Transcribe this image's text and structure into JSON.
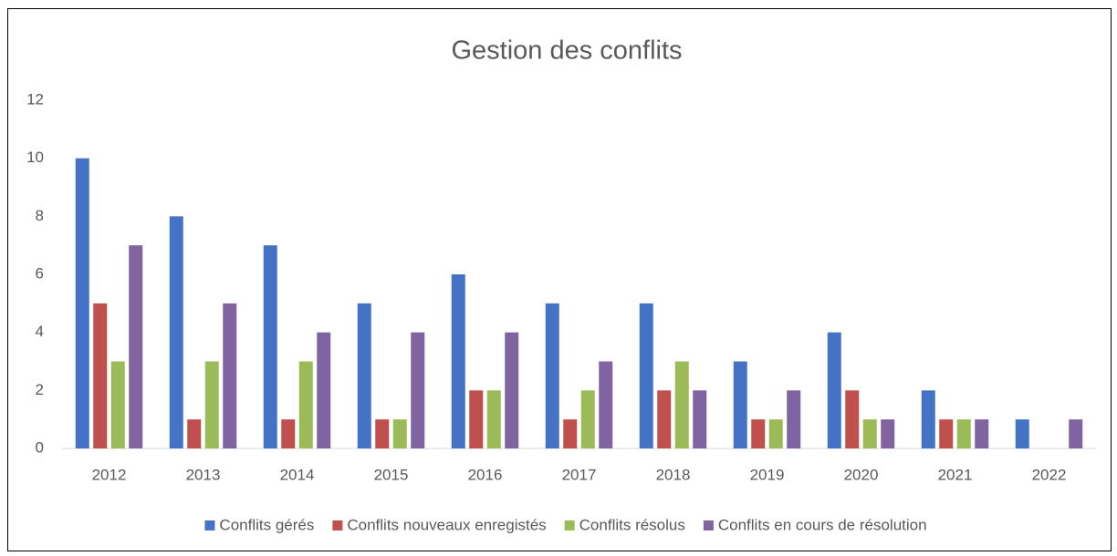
{
  "chart_data": {
    "type": "bar",
    "title": "Gestion des conflits",
    "categories": [
      "2012",
      "2013",
      "2014",
      "2015",
      "2016",
      "2017",
      "2018",
      "2019",
      "2020",
      "2021",
      "2022"
    ],
    "series": [
      {
        "name": "Conflits gérés",
        "color": "#4472c4",
        "values": [
          10,
          8,
          7,
          5,
          6,
          5,
          5,
          3,
          4,
          2,
          1
        ]
      },
      {
        "name": "Conflits nouveaux enregistés",
        "color": "#c0504d",
        "values": [
          5,
          1,
          1,
          1,
          2,
          1,
          2,
          1,
          2,
          1,
          0
        ]
      },
      {
        "name": "Conflits résolus",
        "color": "#9bbb59",
        "values": [
          3,
          3,
          3,
          1,
          2,
          2,
          3,
          1,
          1,
          1,
          0
        ]
      },
      {
        "name": "Conflits en cours de résolution",
        "color": "#8064a2",
        "values": [
          7,
          5,
          4,
          4,
          4,
          3,
          2,
          2,
          1,
          1,
          1
        ]
      }
    ],
    "ylim": [
      0,
      12
    ],
    "yticks": [
      0,
      2,
      4,
      6,
      8,
      10,
      12
    ],
    "grid": false,
    "legend": "bottom"
  }
}
